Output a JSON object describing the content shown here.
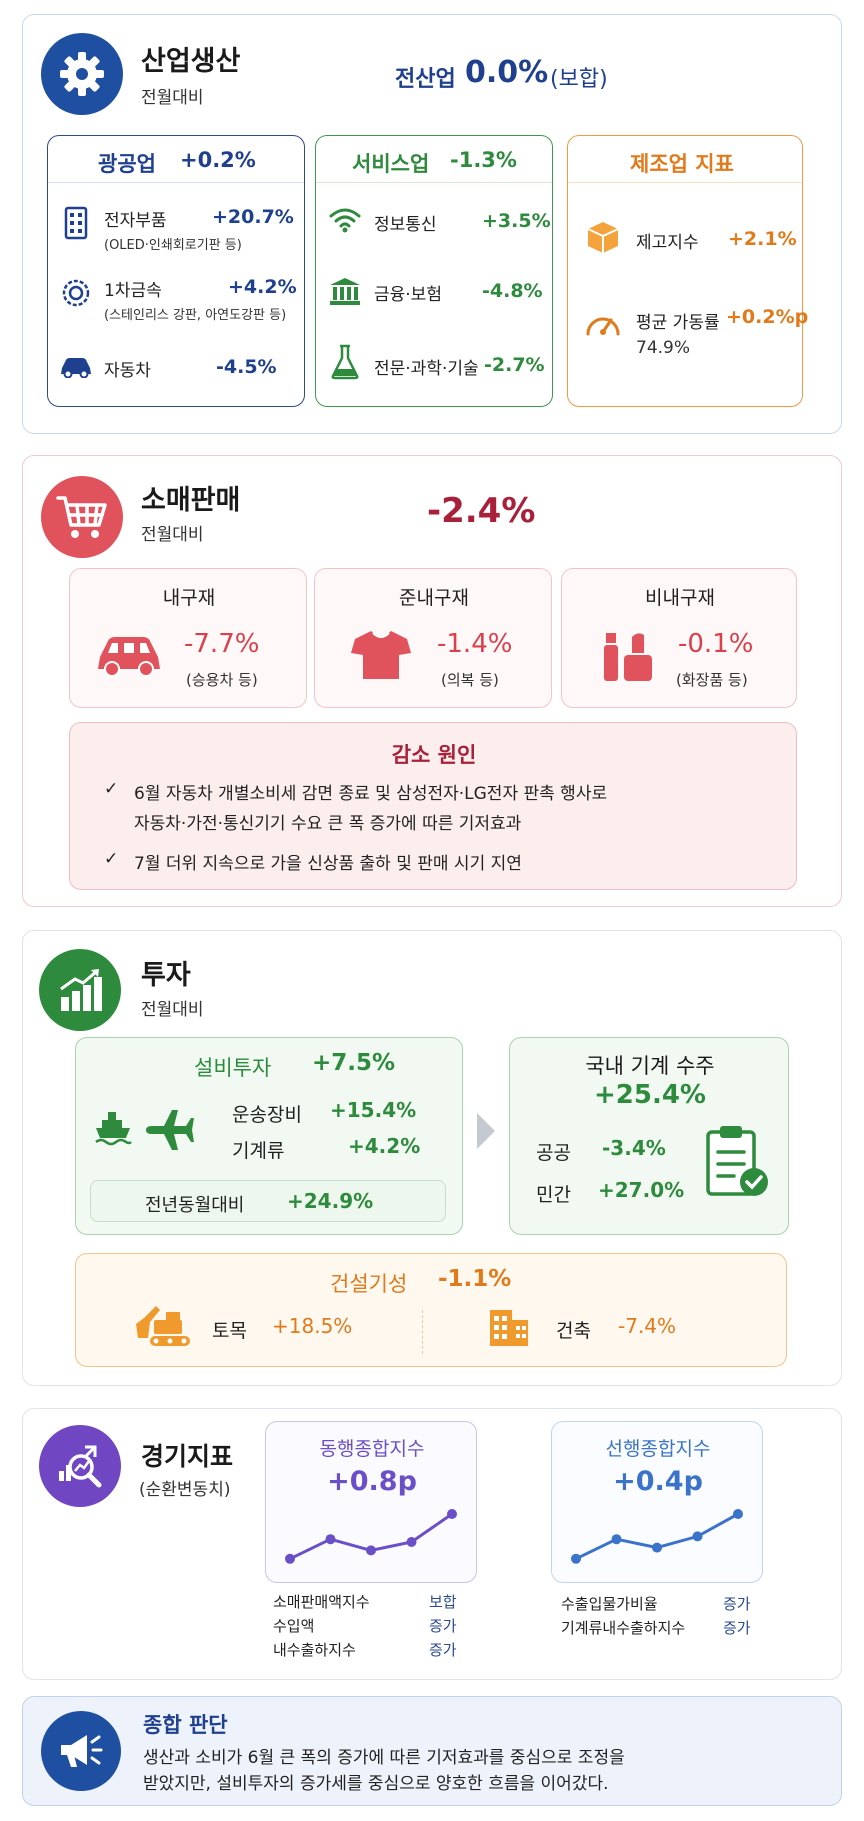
{
  "industrial": {
    "title": "산업생산",
    "subtitle": "전월대비",
    "total_label": "전산업",
    "total_value": "0.0%",
    "total_note": "(보합)",
    "mining": {
      "title": "광공업",
      "value": "+0.2%",
      "items": [
        {
          "label": "전자부품",
          "value": "+20.7%",
          "note": "(OLED·인쇄회로기판 등)",
          "icon": "chip-icon"
        },
        {
          "label": "1차금속",
          "value": "+4.2%",
          "note": "(스테인리스 강판, 아연도강판 등)",
          "icon": "metal-icon"
        },
        {
          "label": "자동차",
          "value": "-4.5%",
          "icon": "car-icon"
        }
      ]
    },
    "service": {
      "title": "서비스업",
      "value": "-1.3%",
      "items": [
        {
          "label": "정보통신",
          "value": "+3.5%",
          "icon": "wifi-icon"
        },
        {
          "label": "금융·보험",
          "value": "-4.8%",
          "icon": "bank-icon"
        },
        {
          "label": "전문·과학·기술",
          "value": "-2.7%",
          "icon": "flask-icon"
        }
      ]
    },
    "manufacturing": {
      "title": "제조업 지표",
      "items": [
        {
          "label": "제고지수",
          "value": "+2.1%",
          "icon": "box-icon"
        },
        {
          "label": "평균 가동률",
          "value": "+0.2%p",
          "note": "74.9%",
          "icon": "gauge-icon"
        }
      ]
    }
  },
  "retail": {
    "title": "소매판매",
    "subtitle": "전월대비",
    "value": "-2.4%",
    "categories": [
      {
        "title": "내구재",
        "value": "-7.7%",
        "note": "(승용차 등)",
        "icon": "car-icon"
      },
      {
        "title": "준내구재",
        "value": "-1.4%",
        "note": "(의복 등)",
        "icon": "shirt-icon"
      },
      {
        "title": "비내구재",
        "value": "-0.1%",
        "note": "(화장품 등)",
        "icon": "cosmetics-icon"
      }
    ],
    "reasons": {
      "title": "감소 원인",
      "items": [
        "6월 자동차 개별소비세 감면 종료 및 삼성전자·LG전자 판촉 행사로",
        "자동차·가전·통신기기 수요 큰 폭 증가에 따른 기저효과",
        "7월 더위 지속으로 가을 신상품 출하 및 판매 시기 지연"
      ]
    }
  },
  "investment": {
    "title": "투자",
    "subtitle": "전월대비",
    "facility": {
      "title": "설비투자",
      "value": "+7.5%",
      "items": [
        {
          "label": "운송장비",
          "value": "+15.4%"
        },
        {
          "label": "기계류",
          "value": "+4.2%"
        }
      ],
      "yoy_label": "전년동월대비",
      "yoy_value": "+24.9%"
    },
    "orders": {
      "title": "국내 기계 수주",
      "value": "+25.4%",
      "items": [
        {
          "label": "공공",
          "value": "-3.4%"
        },
        {
          "label": "민간",
          "value": "+27.0%"
        }
      ]
    },
    "construction": {
      "title": "건설기성",
      "value": "-1.1%",
      "items": [
        {
          "label": "토목",
          "value": "+18.5%",
          "icon": "excavator-icon"
        },
        {
          "label": "건축",
          "value": "-7.4%",
          "icon": "building-icon"
        }
      ]
    }
  },
  "indicators": {
    "title": "경기지표",
    "subtitle": "(순환변동치)",
    "coincident": {
      "title": "동행종합지수",
      "value": "+0.8p",
      "points": [
        0.2,
        0.55,
        0.35,
        0.5,
        1.0
      ],
      "items": [
        {
          "label": "소매판매액지수",
          "status": "보합"
        },
        {
          "label": "수입액",
          "status": "증가"
        },
        {
          "label": "내수출하지수",
          "status": "증가"
        }
      ]
    },
    "leading": {
      "title": "선행종합지수",
      "value": "+0.4p",
      "points": [
        0.2,
        0.55,
        0.4,
        0.6,
        1.0
      ],
      "items": [
        {
          "label": "수출입물가비율",
          "status": "증가"
        },
        {
          "label": "기계류내수출하지수",
          "status": "증가"
        }
      ]
    }
  },
  "summary": {
    "title": "종합 판단",
    "lines": [
      "생산과 소비가 6월 큰 폭의 증가에 따른 기저효과를 중심으로 조정을",
      "받았지만, 설비투자의 증가세를 중심으로 양호한 흐름을 이어갔다."
    ]
  },
  "colors": {
    "navy": "#1f3f8f",
    "green": "#2e8b3d",
    "orange": "#e07a1a",
    "red": "#c8303e",
    "purple": "#6a4fc8",
    "blue": "#3a73c9"
  }
}
